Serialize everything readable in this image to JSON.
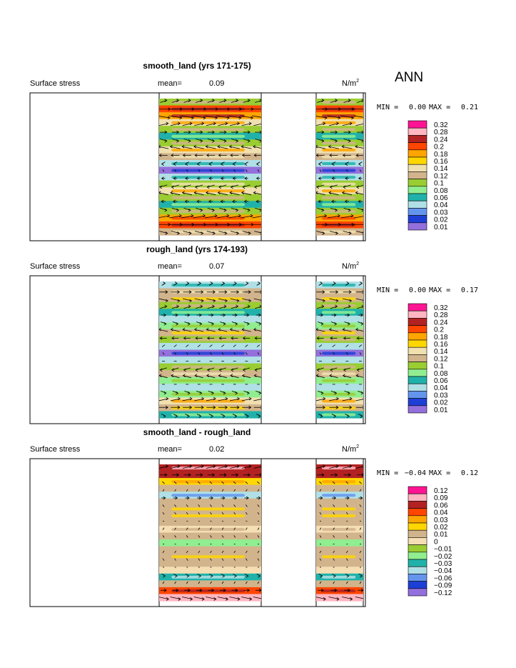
{
  "season": "ANN",
  "units_label": "N/m",
  "units_sup": "2",
  "field_label": "Surface stress",
  "mean_prefix": "mean=",
  "min_prefix": "MIN =",
  "max_prefix": "MAX =",
  "chart_data": [
    {
      "type": "heatmap",
      "title": "smooth_land (yrs 171-175)",
      "mean": "0.09",
      "min": "0.00",
      "max": "0.21",
      "legend_levels": [
        "0.32",
        "0.28",
        "0.24",
        "0.2",
        "0.18",
        "0.16",
        "0.14",
        "0.12",
        "0.1",
        "0.08",
        "0.06",
        "0.04",
        "0.03",
        "0.02",
        "0.01"
      ],
      "legend_colors": [
        "#ff1493",
        "#ffb6c1",
        "#b22222",
        "#ff4500",
        "#ffa500",
        "#ffd700",
        "#f0e0b0",
        "#d2b48c",
        "#9acd32",
        "#90ee90",
        "#20b2aa",
        "#b0e0e6",
        "#6495ed",
        "#1e3fd6",
        "#9370db"
      ],
      "profile": [
        0.1,
        0.2,
        0.19,
        0.14,
        0.1,
        0.06,
        0.1,
        0.15,
        0.12,
        0.05,
        0.015,
        0.05,
        0.11,
        0.14,
        0.1,
        0.06,
        0.1,
        0.18,
        0.2,
        0.12
      ]
    },
    {
      "type": "heatmap",
      "title": "rough_land (yrs 174-193)",
      "mean": "0.07",
      "min": "0.00",
      "max": "0.17",
      "legend_levels": [
        "0.32",
        "0.28",
        "0.24",
        "0.2",
        "0.18",
        "0.16",
        "0.14",
        "0.12",
        "0.1",
        "0.08",
        "0.06",
        "0.04",
        "0.03",
        "0.02",
        "0.01"
      ],
      "legend_colors": [
        "#ff1493",
        "#ffb6c1",
        "#b22222",
        "#ff4500",
        "#ffa500",
        "#ffd700",
        "#f0e0b0",
        "#d2b48c",
        "#9acd32",
        "#90ee90",
        "#20b2aa",
        "#b0e0e6",
        "#6495ed",
        "#1e3fd6",
        "#9370db"
      ],
      "profile": [
        0.05,
        0.12,
        0.13,
        0.1,
        0.07,
        0.04,
        0.08,
        0.13,
        0.1,
        0.04,
        0.012,
        0.04,
        0.1,
        0.12,
        0.08,
        0.04,
        0.08,
        0.14,
        0.13,
        0.06
      ]
    },
    {
      "type": "heatmap",
      "title": "smooth_land - rough_land",
      "mean": "0.02",
      "min": "−0.04",
      "max": "0.12",
      "legend_levels": [
        "0.12",
        "0.09",
        "0.06",
        "0.04",
        "0.03",
        "0.02",
        "0.01",
        "0",
        "−0.01",
        "−0.02",
        "−0.03",
        "−0.04",
        "−0.06",
        "−0.09",
        "−0.12"
      ],
      "legend_colors": [
        "#ff1493",
        "#ffb6c1",
        "#b22222",
        "#ff4500",
        "#ffa500",
        "#ffd700",
        "#d2b48c",
        "#f5deb3",
        "#9acd32",
        "#90ee90",
        "#20b2aa",
        "#b0e0e6",
        "#6495ed",
        "#1e3fd6",
        "#9370db"
      ],
      "profile": [
        0.08,
        0.06,
        0.02,
        0.01,
        -0.035,
        0.01,
        0.015,
        0.012,
        0.01,
        0.005,
        0.01,
        -0.012,
        0.01,
        0.012,
        0.01,
        0.0,
        -0.03,
        0.01,
        0.05,
        0.09
      ]
    }
  ]
}
